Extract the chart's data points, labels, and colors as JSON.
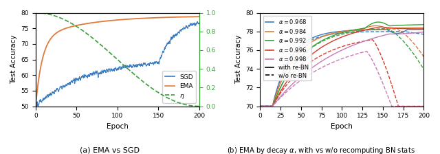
{
  "fig_width": 6.4,
  "fig_height": 2.24,
  "dpi": 100,
  "caption_a": "(a) EMA vs SGD",
  "caption_b": "(b) EMA by decay $\\alpha$, with vs w/o recomputing BN stats",
  "plot_a": {
    "xlim": [
      0,
      200
    ],
    "ylim_left": [
      50,
      80
    ],
    "ylim_right": [
      0.0,
      1.0
    ],
    "yticks_left": [
      50,
      55,
      60,
      65,
      70,
      75,
      80
    ],
    "yticks_right": [
      0.0,
      0.2,
      0.4,
      0.6,
      0.8,
      1.0
    ],
    "xticks": [
      0,
      50,
      100,
      150,
      200
    ],
    "xlabel": "Epoch",
    "ylabel_left": "Test Accuracy",
    "sgd_color": "#3a7abf",
    "ema_color": "#e07b39",
    "eta_color": "#3a9e3a"
  },
  "plot_b": {
    "xlim": [
      0,
      200
    ],
    "ylim": [
      70,
      80
    ],
    "yticks": [
      70,
      72,
      74,
      76,
      78,
      80
    ],
    "xticks": [
      0,
      25,
      50,
      75,
      100,
      125,
      150,
      175,
      200
    ],
    "xlabel": "Epoch",
    "ylabel": "Test Accuracy",
    "color_0968": "#3a7abf",
    "color_0984": "#e07b39",
    "color_0992": "#3aa03a",
    "color_0996": "#d43a2a",
    "color_0998": "#c879b8",
    "alphas": [
      0.968,
      0.984,
      0.992,
      0.996,
      0.998
    ]
  }
}
